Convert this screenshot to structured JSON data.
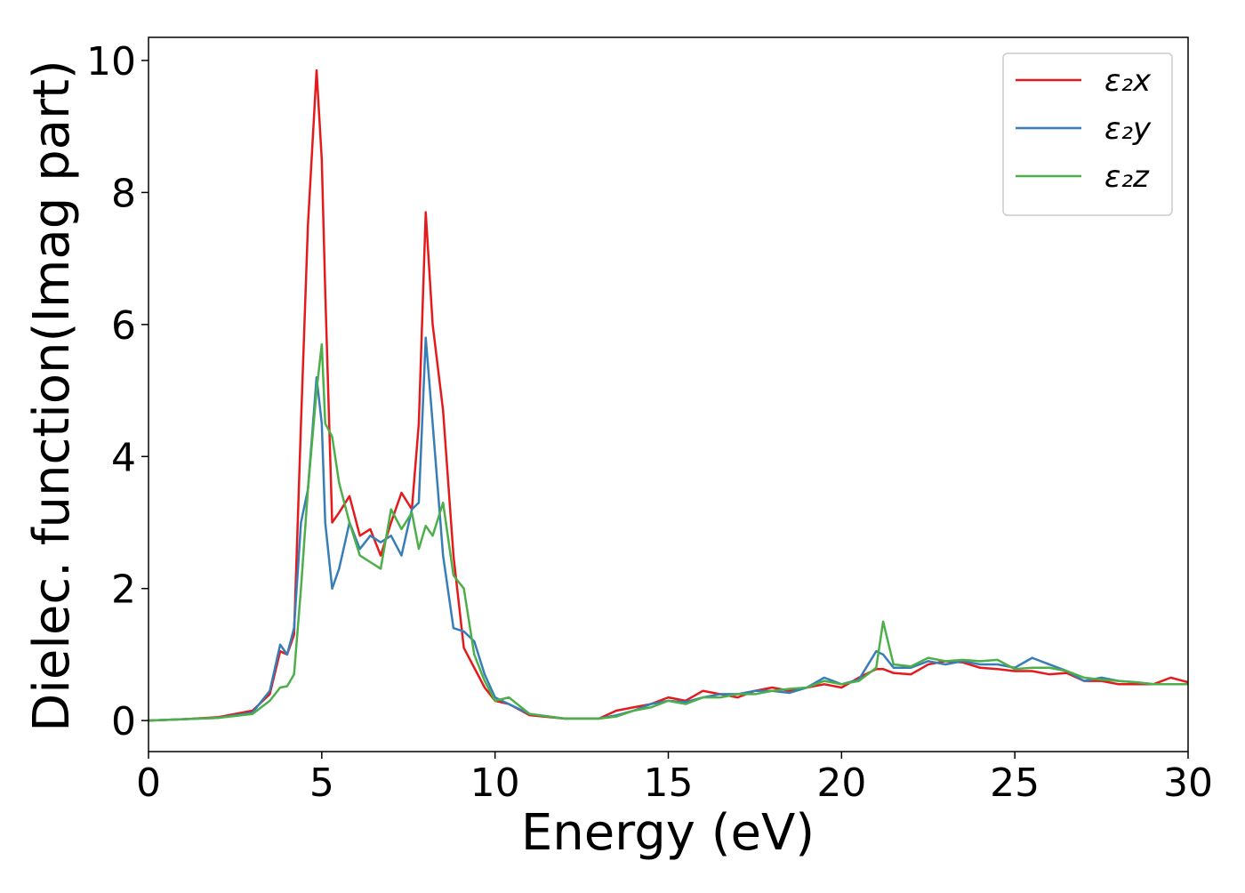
{
  "chart_data": {
    "type": "line",
    "xlabel": "Energy (eV)",
    "ylabel": "Dielec. function(Imag part)",
    "x": [
      0,
      1,
      2,
      3,
      3.5,
      3.8,
      4.0,
      4.2,
      4.4,
      4.6,
      4.85,
      5.0,
      5.1,
      5.3,
      5.5,
      5.8,
      6.1,
      6.4,
      6.7,
      7.0,
      7.3,
      7.6,
      7.8,
      8.0,
      8.2,
      8.5,
      8.8,
      9.1,
      9.4,
      9.7,
      10.0,
      10.4,
      11,
      12,
      13,
      13.5,
      14,
      14.5,
      15,
      15.5,
      16,
      16.5,
      17,
      17.5,
      18,
      18.5,
      19,
      19.5,
      20,
      20.5,
      21,
      21.2,
      21.5,
      22,
      22.5,
      23,
      23.5,
      24,
      24.5,
      25,
      25.5,
      26,
      26.5,
      27,
      27.5,
      28,
      28.5,
      29,
      29.5,
      30
    ],
    "series": [
      {
        "name": "ε₂x",
        "color": "#e41a1c",
        "values": [
          0,
          0.02,
          0.05,
          0.15,
          0.4,
          1.05,
          1.0,
          1.3,
          4.5,
          7.5,
          9.85,
          8.5,
          6.5,
          3.0,
          3.15,
          3.4,
          2.8,
          2.9,
          2.5,
          3.0,
          3.45,
          3.2,
          4.5,
          7.7,
          6.0,
          4.7,
          2.5,
          1.1,
          0.8,
          0.5,
          0.3,
          0.25,
          0.08,
          0.03,
          0.03,
          0.15,
          0.2,
          0.25,
          0.35,
          0.3,
          0.45,
          0.4,
          0.35,
          0.45,
          0.5,
          0.45,
          0.5,
          0.55,
          0.5,
          0.65,
          0.78,
          0.78,
          0.72,
          0.7,
          0.85,
          0.9,
          0.88,
          0.8,
          0.78,
          0.75,
          0.75,
          0.7,
          0.72,
          0.6,
          0.6,
          0.55,
          0.55,
          0.55,
          0.65,
          0.58
        ]
      },
      {
        "name": "ε₂y",
        "color": "#377eb8",
        "values": [
          0,
          0.02,
          0.04,
          0.12,
          0.45,
          1.15,
          1.0,
          1.4,
          3.0,
          3.5,
          5.2,
          4.5,
          3.0,
          2.0,
          2.3,
          3.0,
          2.6,
          2.8,
          2.7,
          2.8,
          2.5,
          3.2,
          3.3,
          5.8,
          4.5,
          2.5,
          1.4,
          1.35,
          1.2,
          0.7,
          0.35,
          0.25,
          0.1,
          0.03,
          0.03,
          0.08,
          0.15,
          0.25,
          0.3,
          0.28,
          0.35,
          0.4,
          0.4,
          0.45,
          0.45,
          0.42,
          0.5,
          0.65,
          0.55,
          0.62,
          1.05,
          1.0,
          0.8,
          0.8,
          0.9,
          0.85,
          0.9,
          0.85,
          0.85,
          0.8,
          0.95,
          0.85,
          0.75,
          0.6,
          0.65,
          0.6,
          0.58,
          0.55,
          0.55,
          0.55
        ]
      },
      {
        "name": "ε₂z",
        "color": "#4daf4a",
        "values": [
          0,
          0.02,
          0.04,
          0.1,
          0.3,
          0.5,
          0.52,
          0.7,
          2.0,
          3.5,
          5.0,
          5.7,
          4.5,
          4.3,
          3.6,
          3.0,
          2.5,
          2.4,
          2.3,
          3.2,
          2.9,
          3.15,
          2.6,
          2.95,
          2.8,
          3.3,
          2.2,
          2.0,
          1.0,
          0.6,
          0.3,
          0.35,
          0.1,
          0.03,
          0.03,
          0.06,
          0.15,
          0.2,
          0.3,
          0.25,
          0.35,
          0.35,
          0.4,
          0.4,
          0.45,
          0.48,
          0.5,
          0.6,
          0.55,
          0.6,
          0.8,
          1.5,
          0.85,
          0.82,
          0.95,
          0.9,
          0.92,
          0.9,
          0.92,
          0.78,
          0.8,
          0.8,
          0.75,
          0.65,
          0.62,
          0.6,
          0.58,
          0.55,
          0.55,
          0.55
        ]
      }
    ],
    "xlim": [
      0,
      30
    ],
    "xticks": [
      0,
      5,
      10,
      15,
      20,
      25,
      30
    ],
    "ylim": [
      -0.47,
      10.35
    ],
    "yticks": [
      0,
      2,
      4,
      6,
      8,
      10
    ],
    "grid": false,
    "legend": "upper right"
  }
}
